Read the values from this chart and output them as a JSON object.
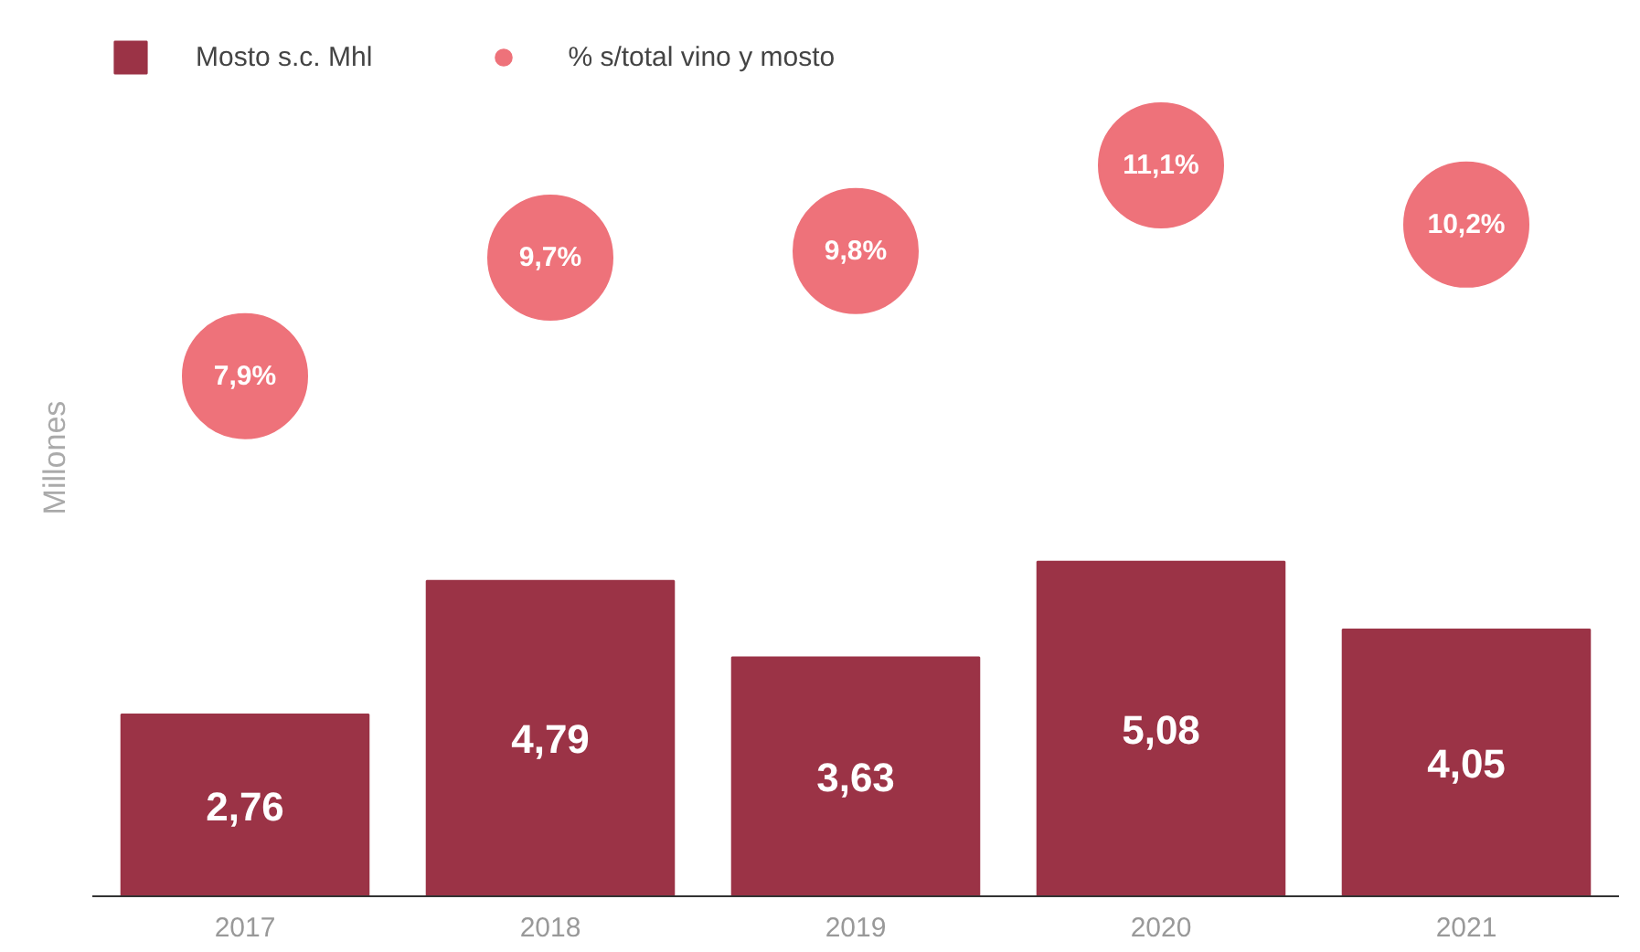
{
  "chart_data": {
    "type": "bar",
    "categories": [
      "2017",
      "2018",
      "2019",
      "2020",
      "2021"
    ],
    "ylabel": "Millones",
    "tick_labels": "x",
    "legend": "top left",
    "series": [
      {
        "name": "Mosto s.c. Mhl",
        "color": "#9b3346",
        "values": [
          2.76,
          4.79,
          3.63,
          5.08,
          4.05
        ],
        "value_labels": [
          "2,76",
          "4,79",
          "3,63",
          "5,08",
          "4,05"
        ]
      },
      {
        "name": "% s/total vino y mosto",
        "type": "scatter",
        "marker": "circle",
        "color": "#ee727a",
        "values": [
          7.9,
          9.7,
          9.8,
          11.1,
          10.2
        ],
        "value_labels": [
          "7,9%",
          "9,7%",
          "9,8%",
          "11,1%",
          "10,2%"
        ]
      }
    ]
  }
}
